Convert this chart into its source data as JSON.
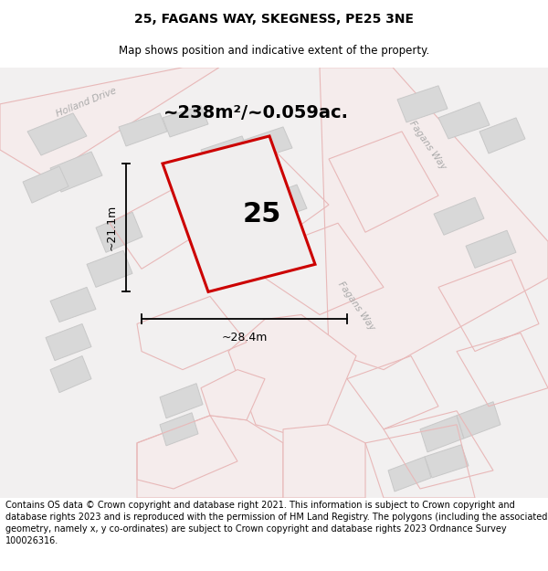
{
  "title": "25, FAGANS WAY, SKEGNESS, PE25 3NE",
  "subtitle": "Map shows position and indicative extent of the property.",
  "footer": "Contains OS data © Crown copyright and database right 2021. This information is subject to Crown copyright and database rights 2023 and is reproduced with the permission of HM Land Registry. The polygons (including the associated geometry, namely x, y co-ordinates) are subject to Crown copyright and database rights 2023 Ordnance Survey 100026316.",
  "area_text": "~238m²/~0.059ac.",
  "width_text": "~28.4m",
  "height_text": "~21.1m",
  "plot_number": "25",
  "map_bg": "#f0eeee",
  "plot_color": "#cc0000",
  "road_stroke": "#e8b8b8",
  "building_color": "#d8d8d8",
  "building_edge": "#c8c8c8",
  "title_fontsize": 10,
  "subtitle_fontsize": 8.5,
  "footer_fontsize": 7.0,
  "area_fontsize": 14,
  "plot_num_fontsize": 22,
  "dim_fontsize": 9
}
